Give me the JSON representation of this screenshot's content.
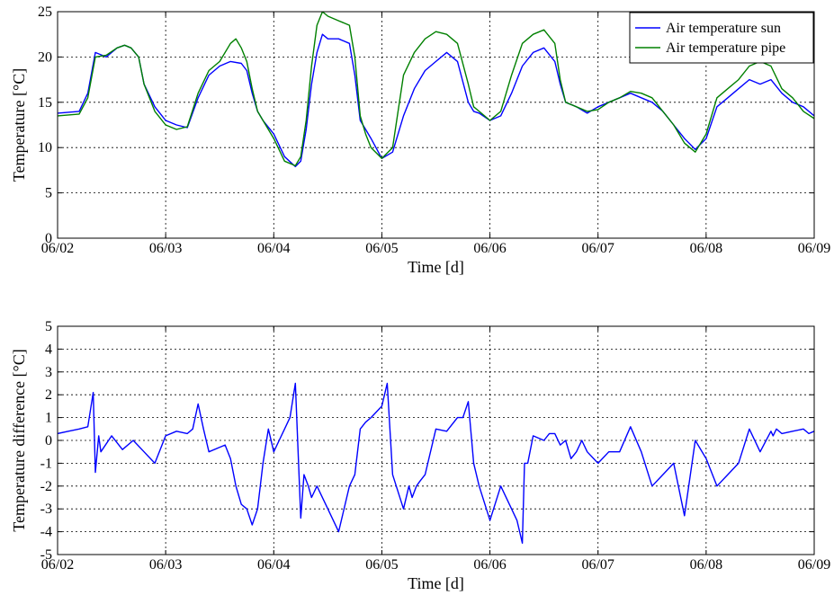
{
  "chart_data": [
    {
      "type": "line",
      "xlabel": "Time [d]",
      "ylabel": "Temperature [°C]",
      "xlim": [
        0,
        7
      ],
      "ylim": [
        0,
        25
      ],
      "xticks": [
        0,
        1,
        2,
        3,
        4,
        5,
        6,
        7
      ],
      "xtick_labels": [
        "06/02",
        "06/03",
        "06/04",
        "06/05",
        "06/06",
        "06/07",
        "06/08",
        "06/09"
      ],
      "yticks": [
        0,
        5,
        10,
        15,
        20,
        25
      ],
      "ytick_labels": [
        "0",
        "5",
        "10",
        "15",
        "20",
        "25"
      ],
      "grid": true,
      "legend": "top-right",
      "series": [
        {
          "name": "Air temperature sun",
          "color": "#0000ff",
          "x": [
            0,
            0.1,
            0.2,
            0.28,
            0.35,
            0.45,
            0.55,
            0.62,
            0.68,
            0.75,
            0.8,
            0.9,
            1.0,
            1.1,
            1.2,
            1.3,
            1.4,
            1.5,
            1.6,
            1.7,
            1.75,
            1.8,
            1.85,
            1.9,
            2.0,
            2.1,
            2.2,
            2.25,
            2.3,
            2.35,
            2.4,
            2.45,
            2.5,
            2.6,
            2.7,
            2.75,
            2.8,
            2.85,
            2.9,
            3.0,
            3.1,
            3.2,
            3.3,
            3.4,
            3.5,
            3.6,
            3.7,
            3.8,
            3.85,
            3.9,
            4.0,
            4.1,
            4.2,
            4.3,
            4.4,
            4.5,
            4.6,
            4.65,
            4.7,
            4.8,
            4.9,
            5.0,
            5.1,
            5.2,
            5.3,
            5.4,
            5.5,
            5.6,
            5.7,
            5.8,
            5.9,
            6.0,
            6.1,
            6.2,
            6.3,
            6.4,
            6.5,
            6.6,
            6.7,
            6.8,
            6.9,
            7.0
          ],
          "y": [
            13.8,
            13.9,
            14.0,
            16.0,
            20.5,
            20.0,
            21.0,
            21.3,
            21.0,
            20.0,
            17.0,
            14.5,
            13.0,
            12.5,
            12.2,
            15.5,
            18.0,
            19.0,
            19.5,
            19.3,
            18.5,
            16.0,
            14.0,
            13.0,
            11.5,
            9.0,
            7.9,
            8.5,
            12.0,
            17.0,
            20.5,
            22.5,
            22.0,
            22.0,
            21.5,
            18.0,
            13.0,
            12.0,
            11.0,
            8.8,
            9.5,
            13.5,
            16.5,
            18.5,
            19.5,
            20.5,
            19.5,
            15.0,
            14.0,
            13.8,
            13.0,
            13.5,
            16.0,
            19.0,
            20.5,
            21.0,
            19.5,
            17.0,
            15.0,
            14.5,
            13.8,
            14.5,
            15.0,
            15.5,
            16.0,
            15.5,
            15.0,
            14.0,
            12.5,
            11.0,
            9.8,
            11.0,
            14.5,
            15.5,
            16.5,
            17.5,
            17.0,
            17.5,
            16.0,
            15.0,
            14.5,
            13.5
          ]
        },
        {
          "name": "Air temperature pipe",
          "color": "#008000",
          "x": [
            0,
            0.1,
            0.2,
            0.28,
            0.35,
            0.45,
            0.55,
            0.62,
            0.68,
            0.75,
            0.8,
            0.9,
            1.0,
            1.1,
            1.2,
            1.3,
            1.4,
            1.5,
            1.6,
            1.65,
            1.7,
            1.75,
            1.8,
            1.85,
            1.9,
            2.0,
            2.1,
            2.2,
            2.25,
            2.3,
            2.35,
            2.4,
            2.45,
            2.5,
            2.6,
            2.7,
            2.75,
            2.8,
            2.85,
            2.9,
            3.0,
            3.1,
            3.2,
            3.3,
            3.4,
            3.5,
            3.6,
            3.7,
            3.8,
            3.85,
            3.9,
            4.0,
            4.1,
            4.2,
            4.3,
            4.4,
            4.5,
            4.6,
            4.65,
            4.7,
            4.8,
            4.9,
            5.0,
            5.1,
            5.2,
            5.3,
            5.4,
            5.5,
            5.6,
            5.7,
            5.8,
            5.9,
            6.0,
            6.1,
            6.2,
            6.3,
            6.4,
            6.5,
            6.6,
            6.7,
            6.8,
            6.9,
            7.0
          ],
          "y": [
            13.5,
            13.6,
            13.7,
            15.5,
            20.0,
            20.2,
            21.0,
            21.3,
            21.0,
            20.0,
            17.0,
            14.0,
            12.5,
            12.0,
            12.3,
            16.0,
            18.5,
            19.5,
            21.5,
            22.0,
            21.0,
            19.5,
            16.5,
            14.0,
            13.0,
            11.0,
            8.5,
            8.0,
            9.0,
            13.0,
            19.0,
            23.5,
            25.0,
            24.5,
            24.0,
            23.5,
            20.0,
            13.5,
            11.5,
            10.0,
            8.8,
            10.0,
            18.0,
            20.5,
            22.0,
            22.8,
            22.5,
            21.5,
            17.0,
            14.5,
            14.0,
            13.0,
            14.0,
            18.0,
            21.5,
            22.5,
            23.0,
            21.5,
            17.5,
            15.0,
            14.5,
            14.0,
            14.2,
            15.0,
            15.5,
            16.2,
            16.0,
            15.5,
            14.0,
            12.5,
            10.5,
            9.5,
            11.5,
            15.5,
            16.5,
            17.5,
            19.0,
            19.5,
            19.0,
            16.5,
            15.5,
            14.0,
            13.2
          ]
        }
      ]
    },
    {
      "type": "line",
      "xlabel": "Time [d]",
      "ylabel": "Temperature difference [°C]",
      "xlim": [
        0,
        7
      ],
      "ylim": [
        -5,
        5
      ],
      "xticks": [
        0,
        1,
        2,
        3,
        4,
        5,
        6,
        7
      ],
      "xtick_labels": [
        "06/02",
        "06/03",
        "06/04",
        "06/05",
        "06/06",
        "06/07",
        "06/08",
        "06/09"
      ],
      "yticks": [
        -5,
        -4,
        -3,
        -2,
        -1,
        0,
        1,
        2,
        3,
        4,
        5
      ],
      "ytick_labels": [
        "-5",
        "-4",
        "-3",
        "-2",
        "-1",
        "0",
        "1",
        "2",
        "3",
        "4",
        "5"
      ],
      "grid": true,
      "series": [
        {
          "color": "#0000ff",
          "x": [
            0,
            0.1,
            0.2,
            0.28,
            0.33,
            0.35,
            0.38,
            0.4,
            0.5,
            0.6,
            0.7,
            0.8,
            0.9,
            1.0,
            1.1,
            1.2,
            1.25,
            1.3,
            1.35,
            1.4,
            1.5,
            1.55,
            1.6,
            1.65,
            1.7,
            1.75,
            1.8,
            1.85,
            1.9,
            1.95,
            2.0,
            2.05,
            2.1,
            2.15,
            2.2,
            2.25,
            2.28,
            2.32,
            2.35,
            2.4,
            2.5,
            2.6,
            2.7,
            2.75,
            2.8,
            2.85,
            2.9,
            3.0,
            3.05,
            3.1,
            3.2,
            3.25,
            3.28,
            3.32,
            3.35,
            3.4,
            3.5,
            3.6,
            3.7,
            3.75,
            3.8,
            3.85,
            3.9,
            4.0,
            4.1,
            4.2,
            4.25,
            4.3,
            4.32,
            4.35,
            4.4,
            4.5,
            4.55,
            4.6,
            4.65,
            4.7,
            4.75,
            4.8,
            4.85,
            4.9,
            5.0,
            5.1,
            5.2,
            5.3,
            5.4,
            5.5,
            5.6,
            5.7,
            5.8,
            5.9,
            6.0,
            6.1,
            6.2,
            6.3,
            6.4,
            6.5,
            6.6,
            6.62,
            6.65,
            6.7,
            6.8,
            6.9,
            6.95,
            7.0
          ],
          "y": [
            0.3,
            0.4,
            0.5,
            0.6,
            2.1,
            -1.4,
            0.2,
            -0.5,
            0.2,
            -0.4,
            0.0,
            -0.5,
            -1.0,
            0.2,
            0.4,
            0.3,
            0.5,
            1.6,
            0.5,
            -0.5,
            -0.3,
            -0.2,
            -0.8,
            -2.0,
            -2.8,
            -3.0,
            -3.7,
            -3.0,
            -1.0,
            0.5,
            -0.5,
            0.0,
            0.5,
            1.0,
            2.5,
            -3.4,
            -1.5,
            -2.0,
            -2.5,
            -2.0,
            -3.0,
            -4.0,
            -2.0,
            -1.5,
            0.5,
            0.8,
            1.0,
            1.5,
            2.5,
            -1.5,
            -3.0,
            -2.0,
            -2.5,
            -2.0,
            -1.8,
            -1.5,
            0.5,
            0.4,
            1.0,
            1.0,
            1.7,
            -1.0,
            -2.0,
            -3.5,
            -2.0,
            -3.0,
            -3.5,
            -4.5,
            -1.0,
            -1.0,
            0.2,
            0.0,
            0.3,
            0.3,
            -0.2,
            0.0,
            -0.8,
            -0.5,
            0.0,
            -0.5,
            -1.0,
            -0.5,
            -0.5,
            0.6,
            -0.5,
            -2.0,
            -1.5,
            -1.0,
            -3.3,
            0.0,
            -0.8,
            -2.0,
            -1.5,
            -1.0,
            0.5,
            -0.5,
            0.4,
            0.2,
            0.5,
            0.3,
            0.4,
            0.5,
            0.3,
            0.4
          ]
        }
      ]
    }
  ]
}
